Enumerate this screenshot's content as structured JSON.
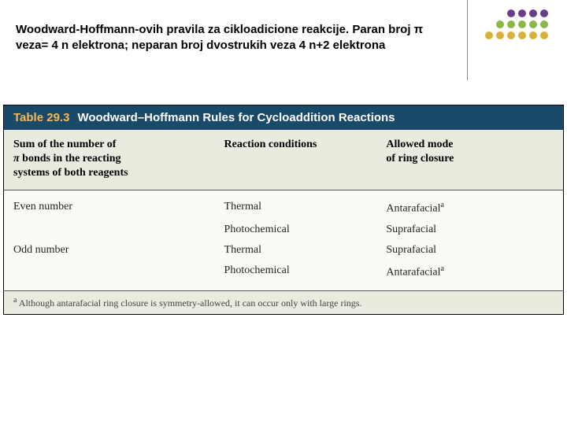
{
  "slide": {
    "title_html": "Woodward-Hoffmann-ovih pravila za cikloadicione reakcije. Paran broj π veza= 4 n elektrona; neparan broj dvostrukih veza 4 n+2 elektrona"
  },
  "dots": {
    "colors": [
      [
        "#6a3d8a",
        "#6a3d8a",
        "#6a3d8a",
        "#6a3d8a"
      ],
      [
        "#8bb84a",
        "#8bb84a",
        "#8bb84a",
        "#8bb84a",
        "#8bb84a"
      ],
      [
        "#d9b13b",
        "#d9b13b",
        "#d9b13b",
        "#d9b13b",
        "#d9b13b",
        "#d9b13b"
      ]
    ]
  },
  "table": {
    "number": "Table 29.3",
    "title": "Woodward–Hoffmann Rules for Cycloaddition Reactions",
    "header": {
      "col1_html": "Sum of the number of<br><span class=\"pi\">π</span> bonds in the reacting<br>systems of both reagents",
      "col2": "Reaction conditions",
      "col3_html": "Allowed mode<br>of ring closure"
    },
    "rows": [
      {
        "c1": "Even number",
        "c2": "Thermal",
        "c3_html": "Antarafacial<sup class=\"fn\">a</sup>"
      },
      {
        "c1": "",
        "c2": "Photochemical",
        "c3_html": "Suprafacial"
      },
      {
        "c1": "Odd number",
        "c2": "Thermal",
        "c3_html": "Suprafacial"
      },
      {
        "c1": "",
        "c2": "Photochemical",
        "c3_html": "Antarafacial<sup class=\"fn\">a</sup>"
      }
    ],
    "footnote_html": "<sup class=\"fn\">a</sup> Although antarafacial ring closure is symmetry-allowed, it can occur only with large rings.",
    "colors": {
      "title_bg": "#1a4a6a",
      "title_num_color": "#f5b957",
      "header_bg": "#ebeadf",
      "body_bg": "#fbfbf6"
    }
  }
}
